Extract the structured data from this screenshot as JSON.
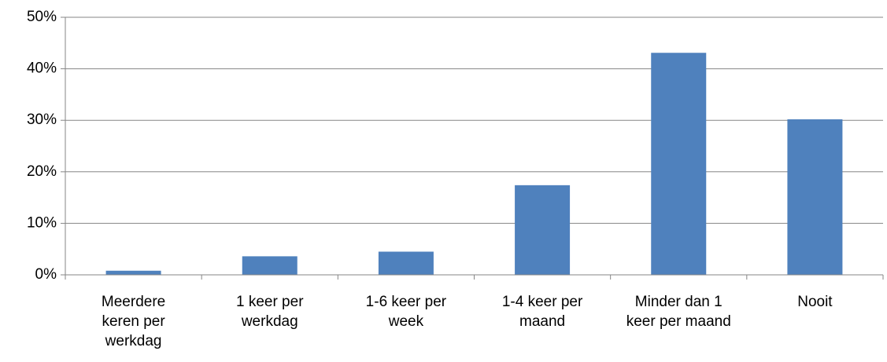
{
  "chart_data": {
    "type": "bar",
    "categories": [
      "Meerdere\nkeren per\nwerkdag",
      "1 keer per\nwerkdag",
      "1-6 keer per\nweek",
      "1-4 keer per\nmaand",
      "Minder dan 1\nkeer per maand",
      "Nooit"
    ],
    "values": [
      0.8,
      3.6,
      4.5,
      17.4,
      43.1,
      30.2
    ],
    "color": "#4f81bd",
    "ylim": [
      0,
      50
    ],
    "yticks": [
      {
        "value": 0,
        "label": "0%"
      },
      {
        "value": 10,
        "label": "10%"
      },
      {
        "value": 20,
        "label": "20%"
      },
      {
        "value": 30,
        "label": "30%"
      },
      {
        "value": 40,
        "label": "40%"
      },
      {
        "value": 50,
        "label": "50%"
      }
    ],
    "grid": true
  }
}
